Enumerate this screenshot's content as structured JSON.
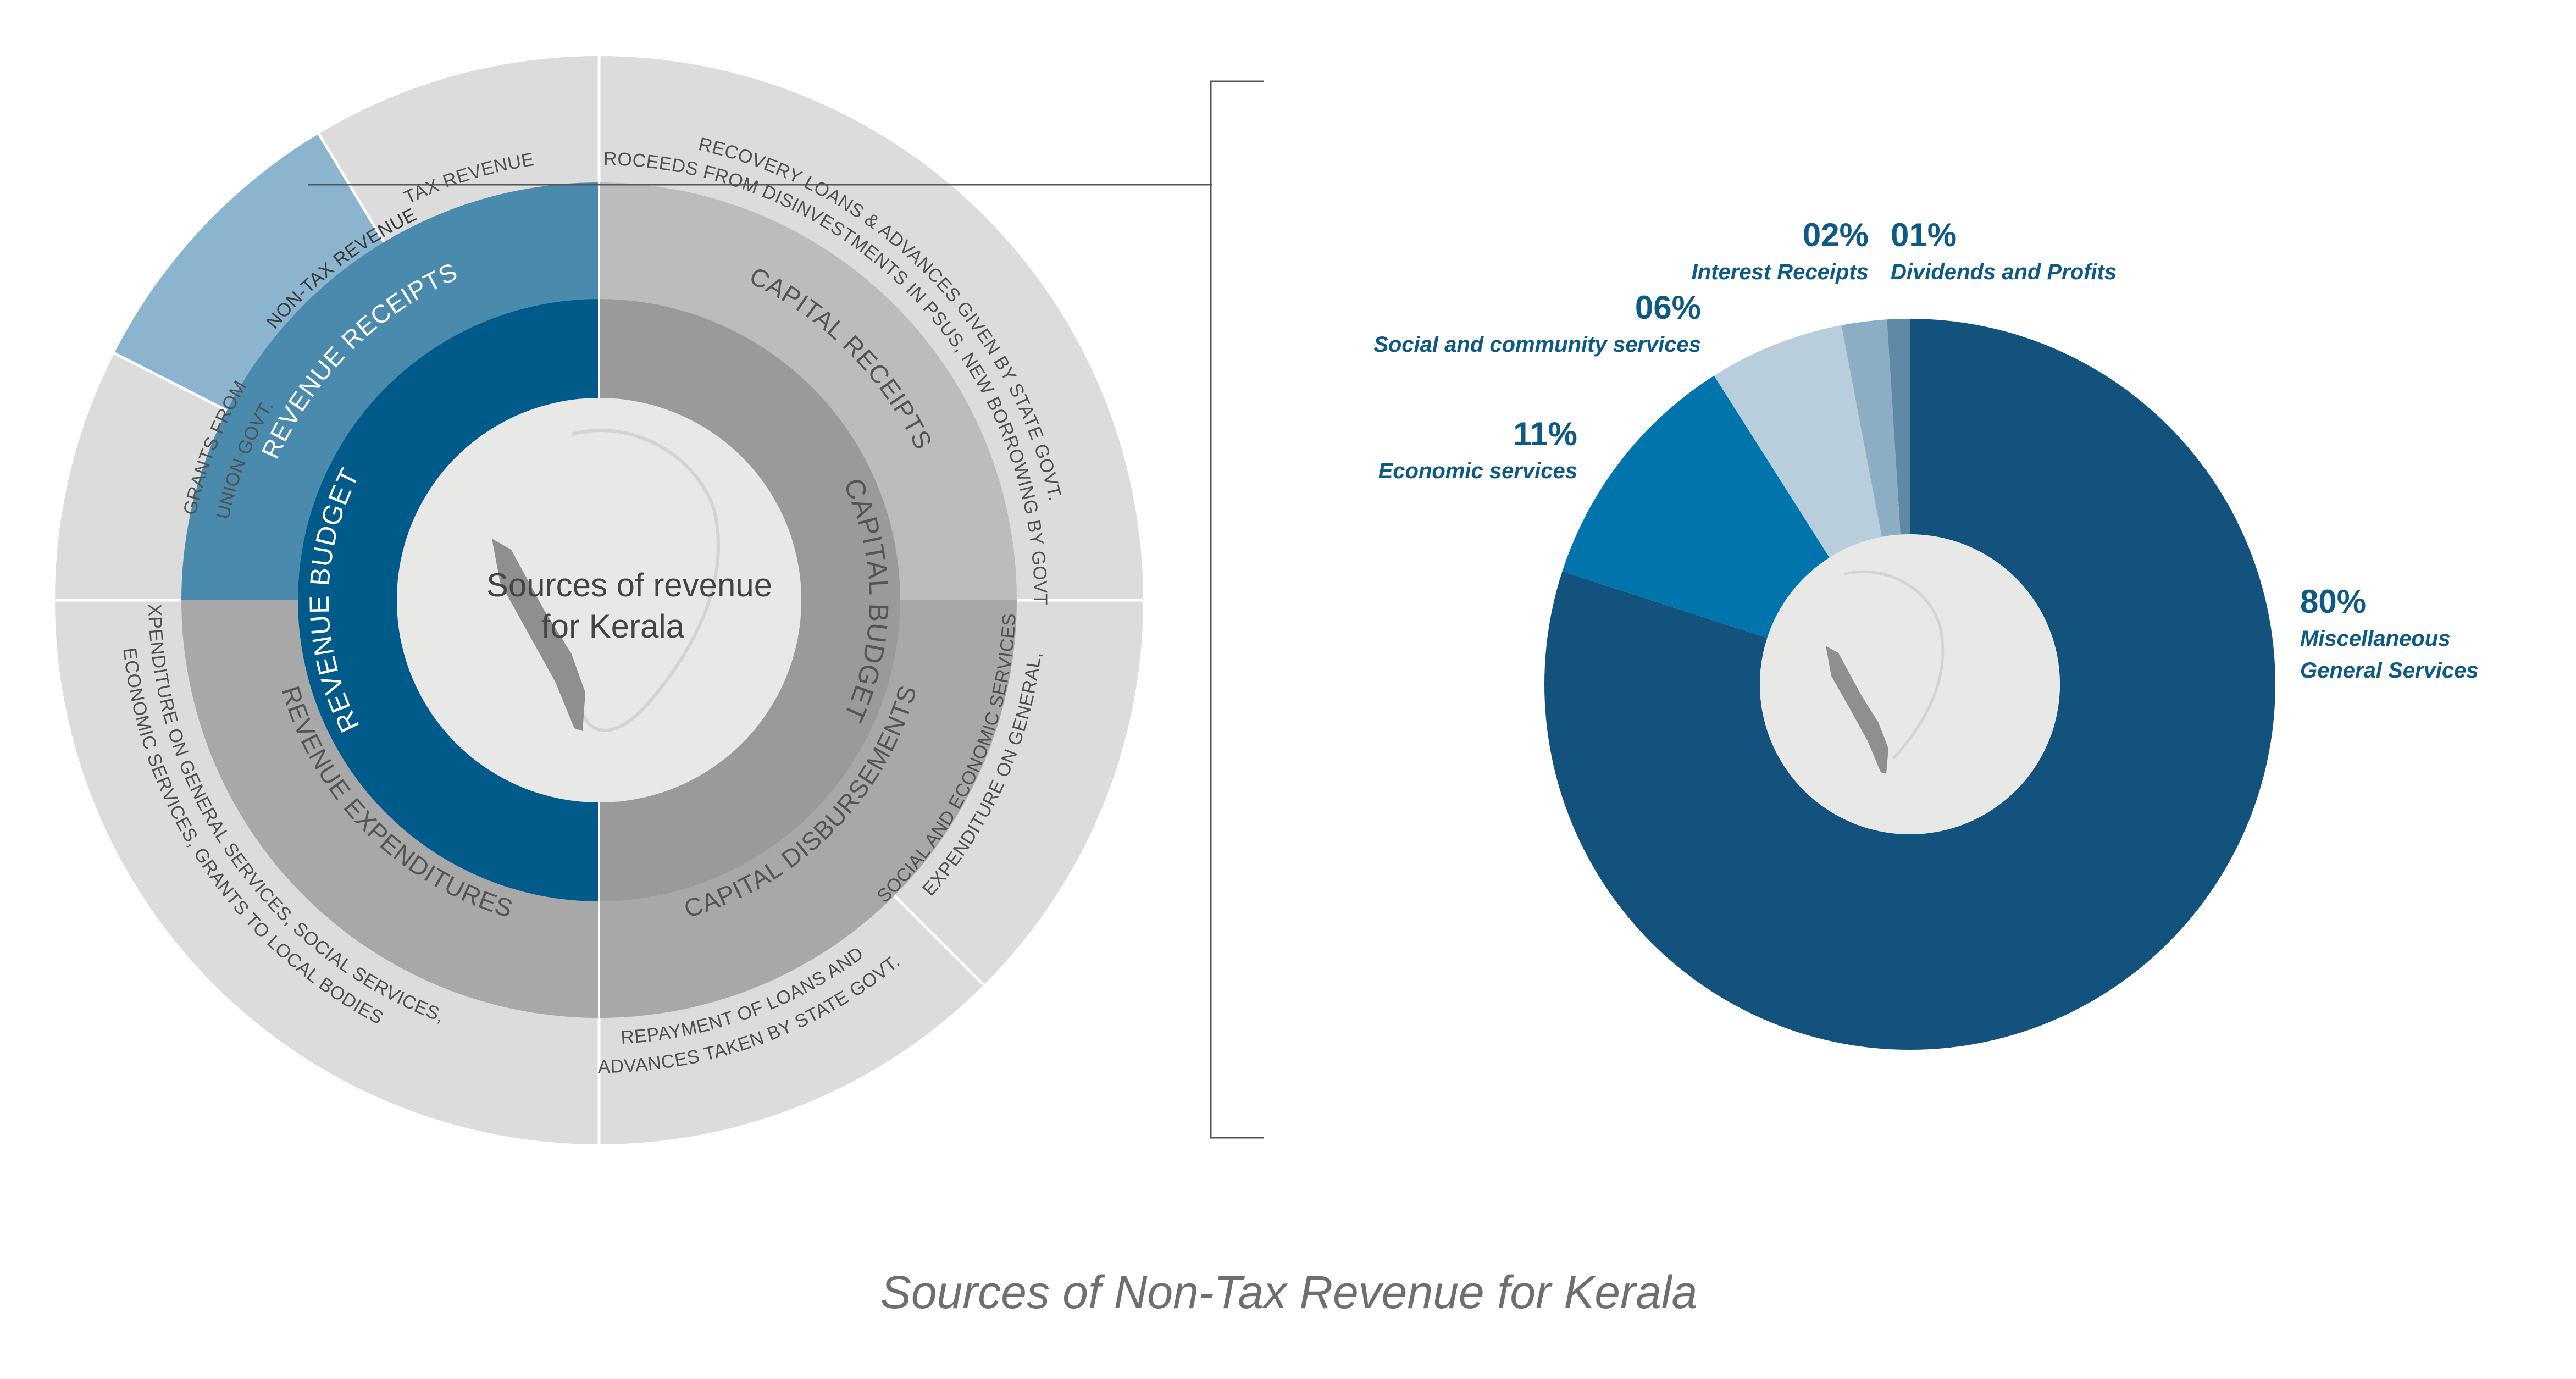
{
  "title": "Sources of Non-Tax Revenue for Kerala",
  "diagram": {
    "center_title_line1": "Sources of revenue",
    "center_title_line2": "for Kerala",
    "inner": {
      "revenue_budget": "REVENUE  BUDGET",
      "capital_budget": "CAPITAL  BUDGET"
    },
    "middle": {
      "revenue_receipts": "REVENUE RECEIPTS",
      "capital_receipts": "CAPITAL RECEIPTS",
      "capital_disbursements": "CAPITAL  DISBURSEMENTS",
      "revenue_expenditures": "REVENUE  EXPENDITURES"
    },
    "outer": {
      "tax_revenue": "TAX REVENUE",
      "non_tax_revenue": "NON-TAX REVENUE",
      "grants_line1": "GRANTS FROM",
      "grants_line2": "UNION GOVT.",
      "recovery_loans": "RECOVERY LOANS & ADVANCES GIVEN BY STATE GOVT.",
      "proceeds_line": "PROCEEDS FROM DISINVESTMENTS IN PSUs, NEW BORROWING BY GOVT.",
      "exp_general_line1": "EXPENDITURE ON GENERAL,",
      "exp_general_line2": "SOCIAL AND ECONOMIC SERVICES",
      "repayment_line1": "REPAYMENT OF LOANS AND",
      "repayment_line2": "ADVANCES TAKEN BY STATE GOVT.",
      "exp_services_line1": "EXPENDITURE ON GENERAL SERVICES, SOCIAL SERVICES,",
      "exp_services_line2": "ECONOMIC SERVICES, GRANTS TO LOCAL BODIES"
    },
    "colors": {
      "outer_ring": "#dcdcdc",
      "middle_gray": "#bcbcbc",
      "inner_gray": "#9a9a9a",
      "lower_middle": "#a8a8a8",
      "revenue_receipts": "#4a8aad",
      "non_tax_highlight": "#8bb5cf",
      "revenue_budget": "#005b8b",
      "center": "#e8e8e6"
    }
  },
  "chart_data": {
    "type": "pie",
    "donut": true,
    "slices": [
      {
        "percent_label": "80%",
        "value": 80,
        "line1": "Miscellaneous",
        "line2": "General Services",
        "color": "#12527c"
      },
      {
        "percent_label": "11%",
        "value": 11,
        "line1": "Economic services",
        "line2": "",
        "color": "#0074ab"
      },
      {
        "percent_label": "06%",
        "value": 6,
        "line1": "Social and community services",
        "line2": "",
        "color": "#b8cedd"
      },
      {
        "percent_label": "02%",
        "value": 2,
        "line1": "Interest Receipts",
        "line2": "",
        "color": "#8caec4"
      },
      {
        "percent_label": "01%",
        "value": 1,
        "line1": "Dividends and Profits",
        "line2": "",
        "color": "#5f8aa6"
      }
    ]
  }
}
